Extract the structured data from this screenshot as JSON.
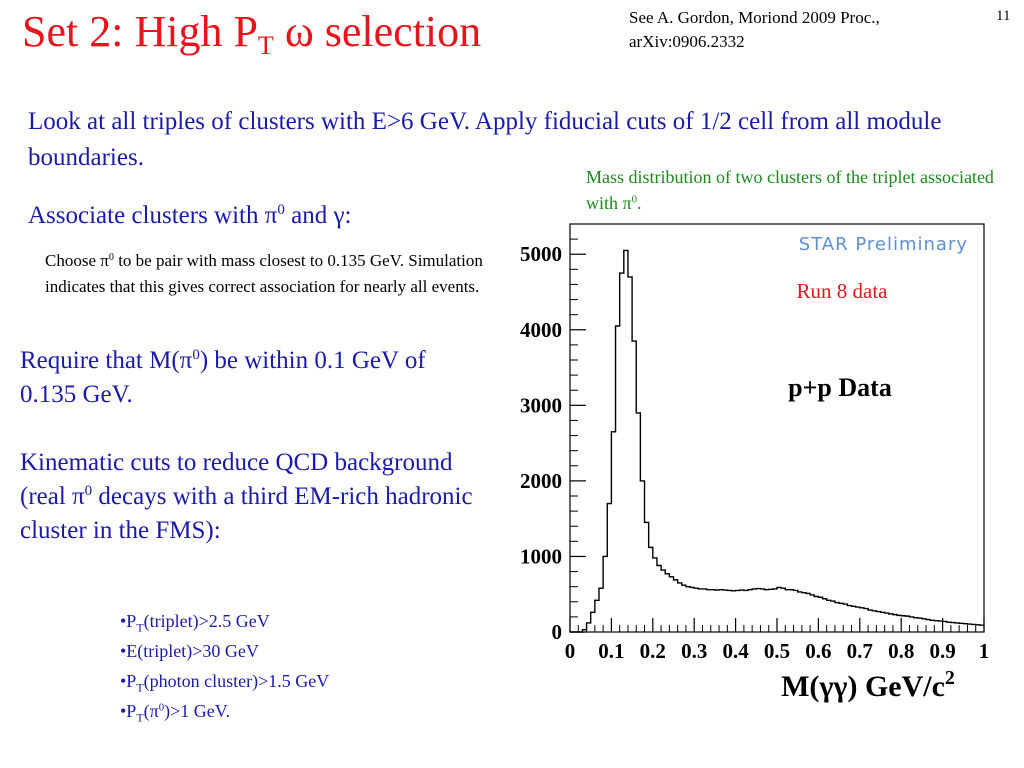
{
  "slide": {
    "title_main": "Set 2: High P",
    "title_sub": "T",
    "title_tail": " ω selection",
    "reference_line1": "See A. Gordon, Moriond 2009 Proc.,",
    "reference_line2": "arXiv:0906.2332",
    "page_number": "11"
  },
  "text": {
    "p1": "Look at all triples of clusters with E>6 GeV. Apply fiducial cuts of 1/2 cell from all module boundaries.",
    "p2_before": "Associate clusters with π",
    "p2_sup": "0",
    "p2_after": " and γ:",
    "p3_a": "Choose π",
    "p3_sup": "0",
    "p3_b": " to be pair with mass closest to 0.135 GeV. Simulation indicates that this gives correct association for nearly all events.",
    "p4_a": "Require that M(π",
    "p4_sup": "0",
    "p4_b": ") be within 0.1 GeV of 0.135 GeV.",
    "p5_a": "Kinematic cuts to reduce QCD background (real π",
    "p5_sup": "0",
    "p5_b": " decays with a third EM-rich hadronic cluster in the FMS):"
  },
  "cuts": {
    "c1_pre": "•P",
    "c1_sub": "T",
    "c1_post": "(triplet)>2.5 GeV",
    "c2": "•E(triplet)>30 GeV",
    "c3_pre": "•P",
    "c3_sub": "T",
    "c3_post": "(photon cluster)>1.5 GeV",
    "c4_pre": "•P",
    "c4_sub": "T",
    "c4_mid": "(π",
    "c4_sup": "0",
    "c4_post": ")>1 GeV."
  },
  "caption": {
    "text": "Mass distribution of two clusters of the triplet associated with π",
    "sup": "0",
    "tail": "."
  },
  "colors": {
    "title": "#e8141c",
    "body_text": "#1a1aa8",
    "caption": "#1a8a1a",
    "run_label": "#e8141c",
    "star_preliminary": "#5f8fd0"
  },
  "chart_data": {
    "type": "histogram",
    "watermark": "STAR Preliminary",
    "run_label": "Run 8 data",
    "dataset_label": "p+p Data",
    "xlabel": "M(γγ) GeV/c",
    "xlabel_sup": "2",
    "xlim": [
      0,
      1
    ],
    "ylim": [
      0,
      5400
    ],
    "x_ticks": [
      "0",
      "0.1",
      "0.2",
      "0.3",
      "0.4",
      "0.5",
      "0.6",
      "0.7",
      "0.8",
      "0.9",
      "1"
    ],
    "y_ticks": [
      "0",
      "1000",
      "2000",
      "3000",
      "4000",
      "5000"
    ],
    "bin_width": 0.01,
    "values": [
      0,
      0,
      0,
      30,
      120,
      260,
      420,
      580,
      1000,
      1700,
      2650,
      4050,
      4750,
      5050,
      4700,
      3850,
      2900,
      2000,
      1450,
      1120,
      980,
      880,
      820,
      770,
      730,
      690,
      650,
      620,
      600,
      590,
      580,
      570,
      570,
      560,
      560,
      555,
      560,
      555,
      550,
      545,
      550,
      555,
      550,
      560,
      570,
      575,
      570,
      560,
      565,
      570,
      590,
      580,
      560,
      560,
      550,
      530,
      520,
      510,
      490,
      470,
      460,
      440,
      420,
      410,
      390,
      380,
      370,
      350,
      340,
      330,
      320,
      310,
      290,
      280,
      270,
      260,
      250,
      240,
      230,
      220,
      215,
      210,
      200,
      190,
      185,
      175,
      165,
      155,
      150,
      145,
      140,
      130,
      125,
      120,
      115,
      110,
      105,
      100,
      95,
      90
    ]
  }
}
